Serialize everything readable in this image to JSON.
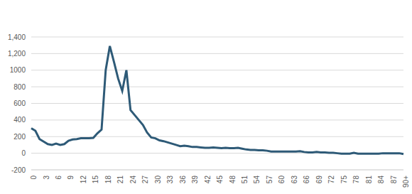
{
  "chart_data": {
    "type": "line",
    "categories": [
      "0",
      null,
      null,
      "3",
      null,
      null,
      "6",
      null,
      null,
      "9",
      null,
      null,
      "12",
      null,
      null,
      "15",
      null,
      null,
      "18",
      null,
      null,
      "21",
      null,
      null,
      "24",
      null,
      null,
      "27",
      null,
      null,
      "30",
      null,
      null,
      "33",
      null,
      null,
      "36",
      null,
      null,
      "39",
      null,
      null,
      "42",
      null,
      null,
      "45",
      null,
      null,
      "48",
      null,
      null,
      "51",
      null,
      null,
      "54",
      null,
      null,
      "57",
      null,
      null,
      "60",
      null,
      null,
      "63",
      null,
      null,
      "66",
      null,
      null,
      "69",
      null,
      null,
      "72",
      null,
      null,
      "75",
      null,
      null,
      "78",
      null,
      null,
      "81",
      null,
      null,
      "84",
      null,
      null,
      "87",
      null,
      null,
      "90+"
    ],
    "values": [
      300,
      270,
      170,
      140,
      110,
      100,
      115,
      100,
      110,
      150,
      165,
      170,
      180,
      180,
      180,
      185,
      240,
      285,
      1000,
      1290,
      1100,
      900,
      750,
      1000,
      520,
      460,
      400,
      340,
      250,
      190,
      180,
      155,
      145,
      130,
      115,
      100,
      85,
      90,
      85,
      75,
      75,
      70,
      65,
      65,
      70,
      65,
      60,
      65,
      60,
      60,
      65,
      55,
      45,
      40,
      40,
      35,
      35,
      30,
      20,
      20,
      20,
      20,
      20,
      20,
      20,
      25,
      15,
      10,
      10,
      15,
      10,
      10,
      5,
      5,
      0,
      -5,
      -5,
      -5,
      5,
      -5,
      -5,
      -5,
      -5,
      -5,
      -5,
      0,
      0,
      0,
      0,
      0,
      -10
    ],
    "color": "#2e5a77",
    "ylim": [
      -200,
      1400
    ],
    "yticks": [
      -200,
      0,
      200,
      400,
      600,
      800,
      1000,
      {
        "value": 1200,
        "label": "1,200"
      },
      {
        "value": 1400,
        "label": "1,400"
      }
    ],
    "grid": true
  }
}
